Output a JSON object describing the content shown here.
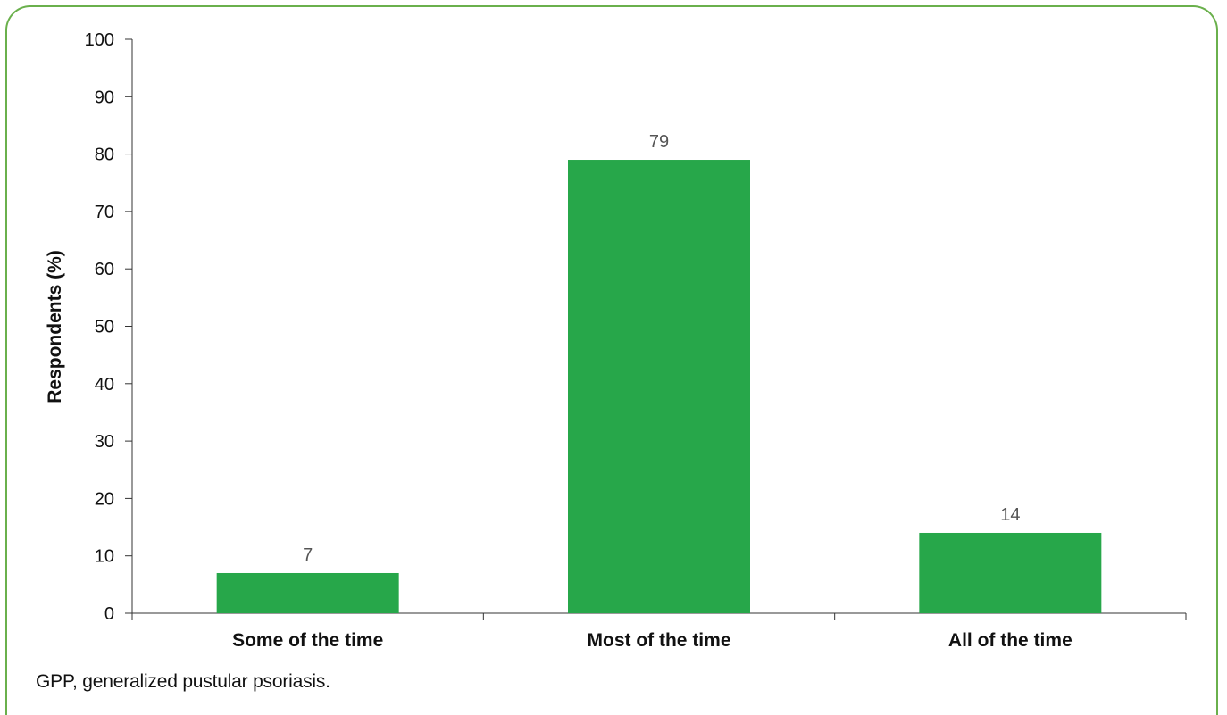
{
  "chart_data": {
    "type": "bar",
    "categories": [
      "Some of the time",
      "Most of the time",
      "All of the time"
    ],
    "values": [
      7,
      79,
      14
    ],
    "data_labels": [
      "7",
      "79",
      "14"
    ],
    "title": "",
    "xlabel": "",
    "ylabel": "Respondents (%)",
    "ylim": [
      0,
      100
    ],
    "yticks": [
      0,
      10,
      20,
      30,
      40,
      50,
      60,
      70,
      80,
      90,
      100
    ],
    "grid": false,
    "legend": "none",
    "bar_color": "#27a74a",
    "frame_color": "#6ab04c"
  },
  "footnote": "GPP, generalized pustular psoriasis."
}
